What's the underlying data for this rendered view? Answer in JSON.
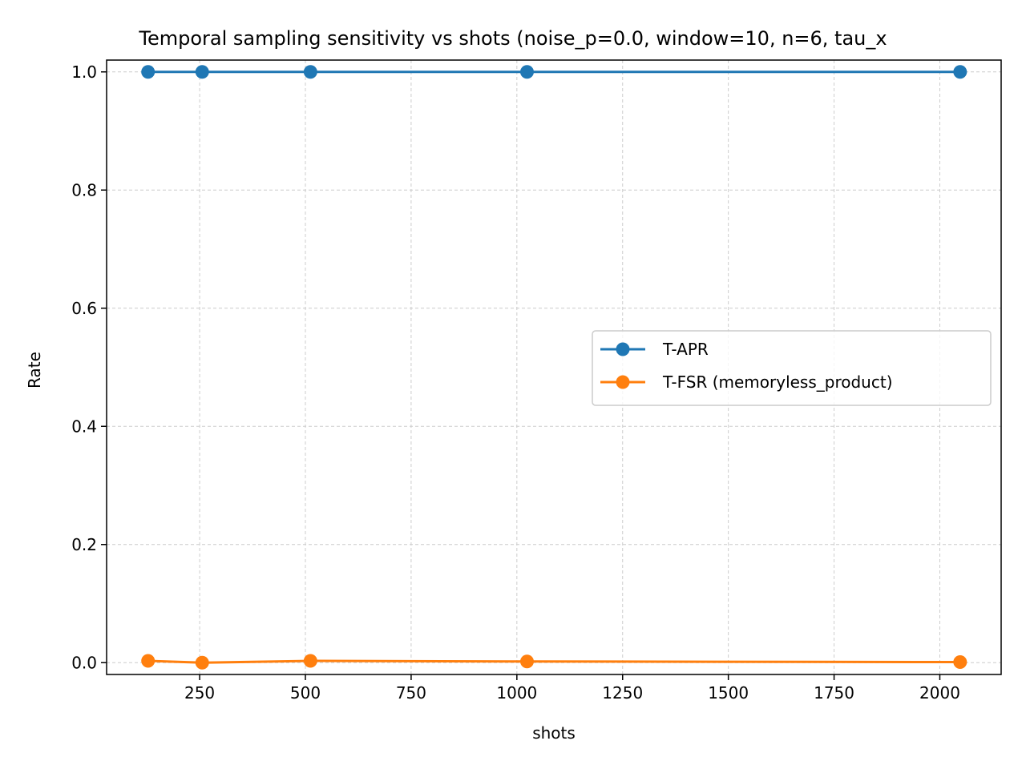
{
  "chart_data": {
    "type": "line",
    "title": "Temporal sampling sensitivity vs shots (noise_p=0.0, window=10, n=6, tau_x",
    "xlabel": "shots",
    "ylabel": "Rate",
    "xlim": [
      30,
      2145
    ],
    "ylim": [
      -0.02,
      1.02
    ],
    "xticks": [
      250,
      500,
      750,
      1000,
      1250,
      1500,
      1750,
      2000
    ],
    "xtick_labels": [
      "250",
      "500",
      "750",
      "1000",
      "1250",
      "1500",
      "1750",
      "2000"
    ],
    "yticks": [
      0.0,
      0.2,
      0.4,
      0.6,
      0.8,
      1.0
    ],
    "ytick_labels": [
      "0.0",
      "0.2",
      "0.4",
      "0.6",
      "0.8",
      "1.0"
    ],
    "grid": true,
    "legend_position": "center-right",
    "x": [
      128,
      256,
      512,
      1024,
      2048
    ],
    "series": [
      {
        "name": "T-APR",
        "color": "#1f77b4",
        "values": [
          1.0,
          1.0,
          1.0,
          1.0,
          1.0
        ]
      },
      {
        "name": "T-FSR (memoryless_product)",
        "color": "#ff7f0e",
        "values": [
          0.003,
          0.0,
          0.003,
          0.002,
          0.001
        ]
      }
    ]
  }
}
